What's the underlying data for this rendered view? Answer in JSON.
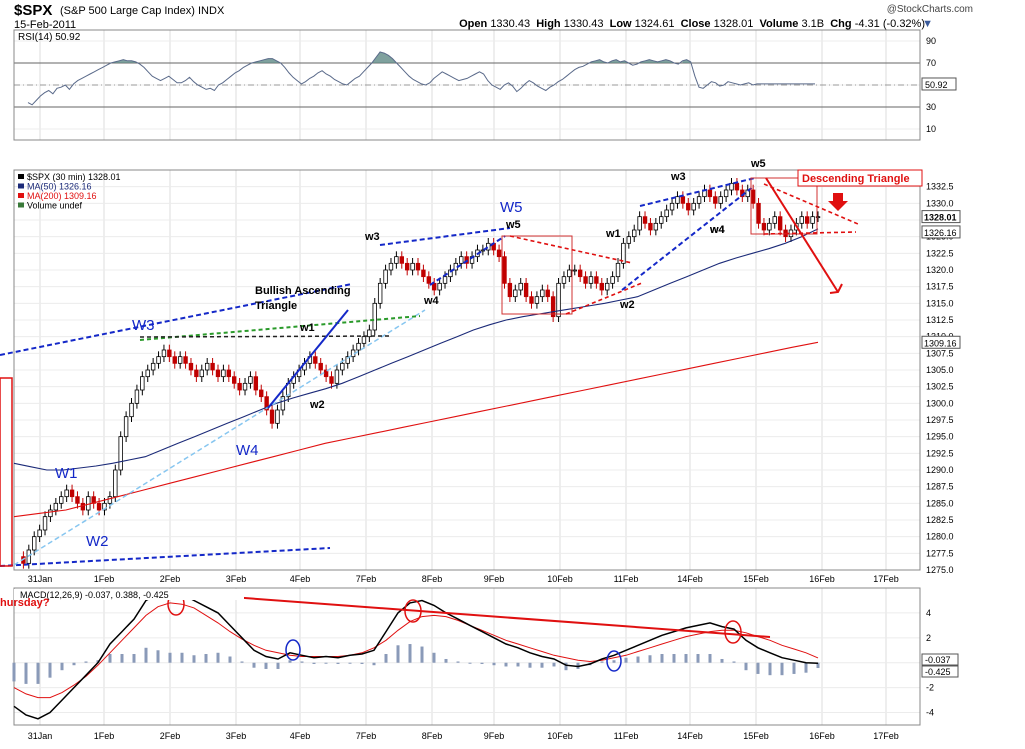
{
  "header": {
    "symbol": "$SPX",
    "description": "(S&P 500 Large Cap Index)  INDX",
    "date": "15-Feb-2011",
    "brand": "@StockCharts.com",
    "ohlc": {
      "open_label": "Open",
      "open": "1330.43",
      "high_label": "High",
      "high": "1330.43",
      "low_label": "Low",
      "low": "1324.61",
      "close_label": "Close",
      "close": "1328.01",
      "volume_label": "Volume",
      "volume": "3.1B",
      "change_label": "Chg",
      "change": "-4.31 (-0.32%)"
    }
  },
  "chart_data": [
    {
      "type": "line",
      "panel": "rsi",
      "legend": "RSI(14) 50.92",
      "current_value": "50.92",
      "ylim": [
        0,
        100
      ],
      "ticks": [
        "90",
        "70",
        "50",
        "30",
        "10"
      ],
      "reference_lines": [
        70,
        30,
        50
      ],
      "x_index_range": [
        0,
        190
      ],
      "values": [
        34,
        32,
        36,
        40,
        43,
        45,
        42,
        47,
        48,
        50,
        46,
        51,
        54,
        56,
        58,
        60,
        62,
        64,
        66,
        68,
        70,
        71,
        72,
        73,
        72,
        72,
        71,
        69,
        66,
        62,
        58,
        56,
        54,
        56,
        58,
        55,
        52,
        52,
        54,
        57,
        53,
        50,
        48,
        46,
        47,
        45,
        50,
        52,
        55,
        58,
        61,
        63,
        66,
        68,
        70,
        71,
        72,
        73,
        74,
        74,
        72,
        70,
        66,
        61,
        57,
        54,
        51,
        53,
        56,
        58,
        61,
        63,
        60,
        58,
        55,
        53,
        51,
        50,
        53,
        56,
        58,
        62,
        66,
        70,
        75,
        80,
        79,
        77,
        74,
        70,
        66,
        62,
        58,
        55,
        53,
        51,
        50,
        52,
        56,
        59,
        62,
        60,
        58,
        56,
        54,
        55,
        56,
        58,
        60,
        62,
        60,
        54,
        50,
        48,
        46,
        50,
        52,
        49,
        44,
        47,
        51,
        54,
        52,
        49,
        47,
        45,
        48,
        50,
        53,
        55,
        58,
        61,
        64,
        66,
        67,
        69,
        71,
        72,
        73,
        71,
        70,
        72,
        73,
        71,
        72,
        70,
        68,
        69,
        71,
        72,
        73,
        72,
        71,
        72,
        73,
        72,
        70,
        69,
        72,
        73,
        71,
        58,
        48,
        47,
        50,
        53,
        52,
        49,
        50,
        53,
        52,
        51,
        50,
        51,
        52,
        50,
        51,
        51,
        51,
        51,
        51,
        51,
        51,
        51,
        51,
        51,
        51,
        51,
        51,
        51,
        51
      ]
    },
    {
      "type": "line",
      "panel": "price",
      "legend": [
        "$SPX (30 min) 1328.01",
        "MA(50) 1326.16",
        "MA(200) 1309.16",
        "Volume undef"
      ],
      "ylim": [
        1275.0,
        1335.0
      ],
      "y_ticks": [
        1275.0,
        1277.5,
        1280.0,
        1282.5,
        1285.0,
        1287.5,
        1290.0,
        1292.5,
        1295.0,
        1297.5,
        1300.0,
        1302.5,
        1305.0,
        1307.5,
        1310.0,
        1312.5,
        1315.0,
        1317.5,
        1320.0,
        1322.5,
        1325.0,
        1327.5,
        1330.0,
        1332.5
      ],
      "price_labels": [
        "1328.01",
        "1326.16",
        "1309.16"
      ],
      "x_labels": [
        "31Jan",
        "1Feb",
        "2Feb",
        "3Feb",
        "4Feb",
        "7Feb",
        "8Feb",
        "9Feb",
        "10Feb",
        "11Feb",
        "14Feb",
        "15Feb",
        "16Feb",
        "17Feb"
      ],
      "series": [
        {
          "name": "$SPX (30 min)",
          "values": [
            1277,
            1276,
            1278,
            1280,
            1281,
            1283,
            1284,
            1285,
            1286,
            1287,
            1286,
            1285,
            1284,
            1286,
            1285,
            1284,
            1285,
            1286,
            1290,
            1295,
            1298,
            1300,
            1302,
            1304,
            1305,
            1306,
            1307,
            1308,
            1307,
            1306,
            1307,
            1306,
            1305,
            1304,
            1305,
            1306,
            1305,
            1304,
            1305,
            1304,
            1303,
            1302,
            1303,
            1304,
            1302,
            1301,
            1299,
            1297,
            1299,
            1301,
            1303,
            1304,
            1305,
            1306,
            1307,
            1306,
            1305,
            1304,
            1303,
            1305,
            1306,
            1307,
            1308,
            1309,
            1310,
            1311,
            1315,
            1318,
            1320,
            1321,
            1322,
            1321,
            1320,
            1321,
            1320,
            1319,
            1318,
            1317,
            1318,
            1319,
            1320,
            1321,
            1322,
            1321,
            1322,
            1323,
            1323,
            1324,
            1323,
            1322,
            1318,
            1316,
            1317,
            1318,
            1316,
            1315,
            1316,
            1317,
            1316,
            1313,
            1318,
            1319,
            1320,
            1320,
            1319,
            1318,
            1319,
            1318,
            1317,
            1318,
            1319,
            1321,
            1324,
            1325,
            1326,
            1328,
            1327,
            1326,
            1327,
            1328,
            1329,
            1330,
            1331,
            1330,
            1329,
            1330,
            1331,
            1332,
            1331,
            1330,
            1331,
            1332,
            1333,
            1332,
            1331,
            1332,
            1330,
            1327,
            1326,
            1327,
            1328,
            1326,
            1325,
            1326,
            1327,
            1328,
            1327,
            1328,
            1328
          ]
        },
        {
          "name": "MA(50)",
          "values": [
            1291,
            1290.5,
            1290,
            1290,
            1290.3,
            1290.6,
            1291,
            1291.5,
            1292,
            1293,
            1294,
            1295,
            1296,
            1297,
            1298,
            1299,
            1300,
            1300.8,
            1301.5,
            1302.2,
            1303,
            1304,
            1305,
            1306,
            1307,
            1308,
            1309,
            1310,
            1311,
            1311.8,
            1312.5,
            1313,
            1313.4,
            1313.8,
            1314.2,
            1314.6,
            1315,
            1315.5,
            1316,
            1317,
            1318,
            1319,
            1320,
            1321,
            1321.8,
            1322.5,
            1323.2,
            1324,
            1325,
            1326.16
          ]
        },
        {
          "name": "MA(200)",
          "values": [
            1283,
            1283.5,
            1284,
            1285,
            1286,
            1287,
            1288,
            1289,
            1290,
            1291,
            1292,
            1293,
            1294,
            1294.8,
            1295.6,
            1296.4,
            1297.2,
            1298,
            1298.8,
            1299.6,
            1300.4,
            1301.2,
            1302,
            1302.8,
            1303.6,
            1304.4,
            1305.2,
            1306,
            1306.8,
            1307.6,
            1308.4,
            1309.16
          ]
        }
      ],
      "annotations": {
        "waves_major": [
          "W1",
          "W2",
          "W3",
          "W4",
          "W5"
        ],
        "waves_minor": [
          "w1",
          "w2",
          "w3",
          "w4",
          "w5",
          "w4",
          "w1",
          "w2",
          "w3",
          "w4",
          "w5"
        ],
        "bullish_title": "Bullish Ascending Triangle",
        "bullish_line1": "Bullish Ascending",
        "bullish_line2": "Triangle",
        "descending_label": "Descending Triangle"
      }
    },
    {
      "type": "line",
      "panel": "macd",
      "legend": "MACD(12,26,9) -0.037, 0.388, -0.425",
      "side_label": "hursday?",
      "current_values": [
        "-0.037",
        "-0.425"
      ],
      "ylim": [
        -5,
        6
      ],
      "ticks": [
        "4",
        "2",
        "0",
        "-2",
        "-4"
      ],
      "x_labels": [
        "31Jan",
        "1Feb",
        "2Feb",
        "3Feb",
        "4Feb",
        "7Feb",
        "8Feb",
        "9Feb",
        "10Feb",
        "11Feb",
        "14Feb",
        "15Feb",
        "16Feb",
        "17Feb"
      ],
      "series": [
        {
          "name": "MACD",
          "values": [
            -3.5,
            -4.2,
            -4.5,
            -4,
            -3,
            -2,
            -1,
            0,
            1.5,
            2.5,
            3.5,
            5,
            5.5,
            5.6,
            5.5,
            5,
            4.5,
            4,
            3,
            2,
            1,
            0.5,
            0.3,
            0.8,
            0.6,
            0.4,
            0.5,
            0.4,
            0.6,
            0.7,
            1,
            2.5,
            4,
            4.8,
            5,
            4.6,
            4,
            3.5,
            3,
            2.5,
            2,
            1.5,
            1.2,
            0.8,
            0.5,
            0.3,
            -0.2,
            -0.3,
            -0.1,
            0.3,
            0.6,
            1,
            1.4,
            1.8,
            2.2,
            2.5,
            2.8,
            3,
            3.2,
            2.9,
            2.7,
            1.8,
            1.2,
            0.8,
            0.4,
            0.2,
            0,
            -0.037
          ]
        },
        {
          "name": "signal",
          "values": [
            -2,
            -2.5,
            -2.8,
            -2.8,
            -2.4,
            -1.8,
            -1.1,
            -0.2,
            0.8,
            1.8,
            2.8,
            3.8,
            4.5,
            4.8,
            4.7,
            4.4,
            3.8,
            3.2,
            2.5,
            1.9,
            1.4,
            1,
            0.8,
            0.6,
            0.5,
            0.5,
            0.5,
            0.5,
            0.6,
            0.8,
            1.2,
            1.8,
            2.6,
            3.3,
            3.7,
            3.8,
            3.7,
            3.4,
            3,
            2.6,
            2.2,
            1.8,
            1.5,
            1.2,
            0.9,
            0.6,
            0.4,
            0.2,
            0.1,
            0.2,
            0.4,
            0.6,
            0.9,
            1.2,
            1.5,
            1.8,
            2.1,
            2.3,
            2.5,
            2.6,
            2.6,
            2.4,
            2.1,
            1.8,
            1.4,
            1.1,
            0.8,
            0.388
          ]
        }
      ]
    }
  ]
}
